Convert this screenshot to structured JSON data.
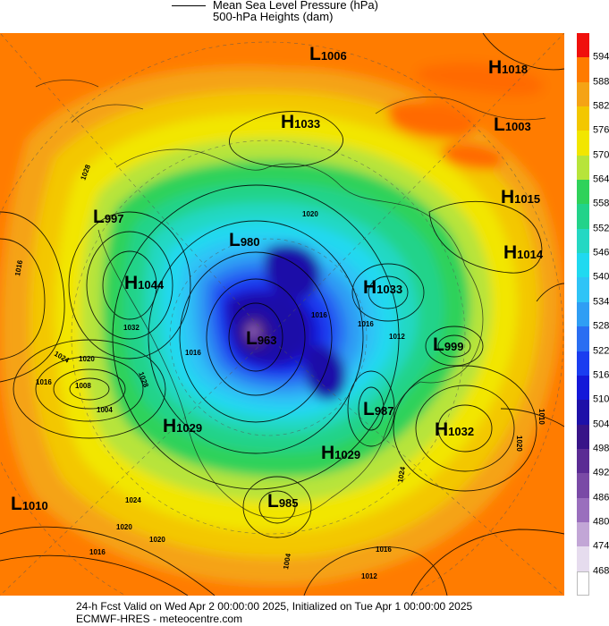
{
  "legend": {
    "line1": "Mean Sea Level Pressure (hPa)",
    "line2": "500-hPa Heights (dam)"
  },
  "footer": {
    "line1": "24-h Fcst Valid on Wed Apr  2 00:00:00 2025, Initialized on Tue Apr  1 00:00:00 2025",
    "line2": "ECMWF-HRES  - meteocentre.com"
  },
  "colorbar": {
    "labels": [
      "594",
      "588",
      "582",
      "576",
      "570",
      "564",
      "558",
      "552",
      "546",
      "540",
      "534",
      "528",
      "522",
      "516",
      "510",
      "504",
      "498",
      "492",
      "486",
      "480",
      "474",
      "468"
    ],
    "colors": [
      "#f0100c",
      "#ff7b00",
      "#f5a315",
      "#f3c700",
      "#f2e600",
      "#b7e43a",
      "#2fd25a",
      "#22d38a",
      "#24d8c3",
      "#20d9f0",
      "#2fc4f6",
      "#2f9ef4",
      "#2a6ef2",
      "#1a3df0",
      "#1418d8",
      "#1e10a8",
      "#381488",
      "#5b2c94",
      "#7a4aa6",
      "#9a6fbd",
      "#c2a6d6",
      "#e6dcee"
    ]
  },
  "pressure_systems": [
    {
      "type": "L",
      "value": "1006",
      "id": "l-1006"
    },
    {
      "type": "H",
      "value": "1018",
      "id": "h-1018"
    },
    {
      "type": "H",
      "value": "1033",
      "id": "h-1033-north"
    },
    {
      "type": "L",
      "value": "1003",
      "id": "l-1003"
    },
    {
      "type": "H",
      "value": "1015",
      "id": "h-1015"
    },
    {
      "type": "H",
      "value": "1014",
      "id": "h-1014"
    },
    {
      "type": "L",
      "value": "997",
      "id": "l-997"
    },
    {
      "type": "L",
      "value": "980",
      "id": "l-980"
    },
    {
      "type": "H",
      "value": "1044",
      "id": "h-1044"
    },
    {
      "type": "H",
      "value": "1033",
      "id": "h-1033-east"
    },
    {
      "type": "L",
      "value": "963",
      "id": "l-963"
    },
    {
      "type": "L",
      "value": "999",
      "id": "l-999"
    },
    {
      "type": "L",
      "value": "987",
      "id": "l-987"
    },
    {
      "type": "H",
      "value": "1029",
      "id": "h-1029-west"
    },
    {
      "type": "H",
      "value": "1032",
      "id": "h-1032"
    },
    {
      "type": "H",
      "value": "1029",
      "id": "h-1029-south"
    },
    {
      "type": "L",
      "value": "1010",
      "id": "l-1010"
    },
    {
      "type": "L",
      "value": "985",
      "id": "l-985"
    }
  ],
  "isobar_labels": [
    "1016",
    "1028",
    "1024",
    "1016",
    "1032",
    "1008",
    "1004",
    "1028",
    "1020",
    "1024",
    "1020",
    "1016",
    "1020",
    "1012",
    "1016",
    "1010",
    "1020",
    "1024",
    "1016",
    "1012",
    "1004",
    "1016",
    "1020",
    "1016"
  ]
}
